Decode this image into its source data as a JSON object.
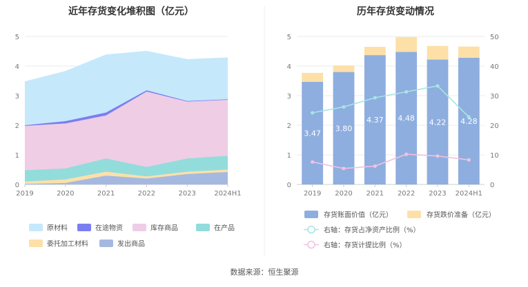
{
  "source": "数据来源：恒生聚源",
  "chart_data": [
    {
      "type": "area",
      "title": "近年存货变化堆积图（亿元）",
      "x": [
        "2019",
        "2020",
        "2021",
        "2022",
        "2023",
        "2024H1"
      ],
      "ylim": [
        0,
        5
      ],
      "yticks": [
        "0",
        "1",
        "2",
        "3",
        "4",
        "5"
      ],
      "grid": true,
      "stacked": true,
      "legend_position": "bottom",
      "series": [
        {
          "name": "发出商品",
          "color": "#a5b9e0",
          "values": [
            0.02,
            0.05,
            0.3,
            0.2,
            0.35,
            0.42
          ]
        },
        {
          "name": "委托加工材料",
          "color": "#fde0a8",
          "values": [
            0.08,
            0.12,
            0.13,
            0.07,
            0.08,
            0.08
          ]
        },
        {
          "name": "在产品",
          "color": "#93dcdc",
          "values": [
            0.38,
            0.37,
            0.45,
            0.32,
            0.45,
            0.47
          ]
        },
        {
          "name": "库存商品",
          "color": "#efcde5",
          "values": [
            1.5,
            1.52,
            1.45,
            2.55,
            1.92,
            1.89
          ]
        },
        {
          "name": "在途物资",
          "color": "#7b7ef0",
          "values": [
            0.02,
            0.08,
            0.1,
            0.04,
            0.02,
            0.02
          ]
        },
        {
          "name": "原材料",
          "color": "#c5e8fb",
          "values": [
            1.47,
            1.68,
            1.95,
            1.32,
            1.4,
            1.4
          ]
        }
      ],
      "legend_order": [
        "原材料",
        "在途物资",
        "库存商品",
        "在产品",
        "委托加工材料",
        "发出商品"
      ]
    },
    {
      "type": "bar",
      "title": "历年存货变动情况",
      "categories": [
        "2019",
        "2020",
        "2021",
        "2022",
        "2023",
        "2024H1"
      ],
      "ylim": [
        0,
        5
      ],
      "yticks": [
        "0",
        "1",
        "2",
        "3",
        "4",
        "5"
      ],
      "y2lim": [
        0,
        50
      ],
      "y2ticks": [
        "0",
        "10",
        "20",
        "30",
        "40",
        "50"
      ],
      "grid": true,
      "stacked": true,
      "legend_position": "bottom",
      "series": [
        {
          "name": "存货账面价值（亿元）",
          "color": "#8eaedf",
          "axis": "left",
          "kind": "bar",
          "values": [
            3.47,
            3.8,
            4.37,
            4.48,
            4.22,
            4.28
          ],
          "labels": [
            "3.47",
            "3.80",
            "4.37",
            "4.48",
            "4.22",
            "4.28"
          ]
        },
        {
          "name": "存货跌价准备（亿元）",
          "color": "#fde0a8",
          "axis": "left",
          "kind": "bar",
          "values": [
            0.3,
            0.22,
            0.28,
            0.5,
            0.46,
            0.38
          ]
        },
        {
          "name": "右轴：存货占净资产比例（%）",
          "color": "#a8e4e6",
          "axis": "right",
          "kind": "line",
          "values": [
            24.2,
            26.2,
            29.3,
            31.3,
            33.3,
            22.8
          ]
        },
        {
          "name": "右轴：存货计提比例（%）",
          "color": "#efc2e0",
          "axis": "right",
          "kind": "line",
          "values": [
            7.6,
            5.4,
            6.2,
            10.2,
            9.6,
            8.3
          ]
        }
      ]
    }
  ]
}
